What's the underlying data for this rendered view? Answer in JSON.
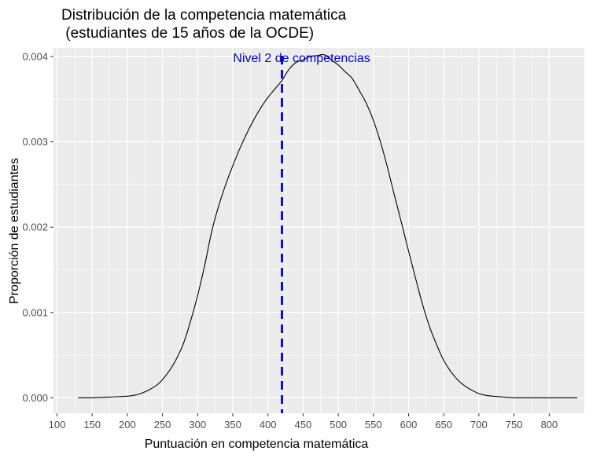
{
  "chart_data": {
    "type": "area",
    "title_line1": "Distribución de la competencia matemática",
    "title_line2": " (estudiantes de 15 años de la OCDE)",
    "xlabel": "Puntuación en competencia matemática",
    "ylabel": "Proporción de estudiantes",
    "xlim": [
      95,
      850
    ],
    "ylim": [
      -0.00018,
      0.0041
    ],
    "x_ticks": [
      100,
      150,
      200,
      250,
      300,
      350,
      400,
      450,
      500,
      550,
      600,
      650,
      700,
      750,
      800
    ],
    "x_tick_labels": [
      "100",
      "150",
      "200",
      "250",
      "300",
      "350",
      "400",
      "450",
      "500",
      "550",
      "600",
      "650",
      "700",
      "750",
      "800"
    ],
    "y_ticks": [
      0,
      0.001,
      0.002,
      0.003,
      0.004
    ],
    "y_tick_labels": [
      "0.000",
      "0.001",
      "0.002",
      "0.003",
      "0.004"
    ],
    "grid": true,
    "series": [
      {
        "x": [
          130,
          150,
          175,
          200,
          215,
          230,
          245,
          260,
          270,
          280,
          290,
          300,
          310,
          320,
          330,
          340,
          350,
          360,
          370,
          380,
          390,
          400,
          410,
          420,
          430,
          440,
          450,
          460,
          470,
          480,
          490,
          500,
          510,
          520,
          530,
          540,
          550,
          560,
          570,
          580,
          590,
          600,
          610,
          620,
          630,
          640,
          650,
          660,
          670,
          680,
          690,
          700,
          710,
          720,
          735,
          750,
          770,
          800,
          840
        ],
        "y": [
          0.0,
          0.0,
          1e-05,
          2e-05,
          4e-05,
          9e-05,
          0.00017,
          0.00032,
          0.00046,
          0.00064,
          0.0009,
          0.0012,
          0.00155,
          0.00195,
          0.00225,
          0.0025,
          0.00272,
          0.00292,
          0.0031,
          0.00326,
          0.0034,
          0.00352,
          0.00362,
          0.00372,
          0.00385,
          0.00393,
          0.00396,
          0.004,
          0.00401,
          0.00402,
          0.00396,
          0.0039,
          0.00382,
          0.00374,
          0.0036,
          0.00345,
          0.00325,
          0.003,
          0.0027,
          0.00237,
          0.00205,
          0.00172,
          0.0014,
          0.00109,
          0.00083,
          0.00062,
          0.00044,
          0.00031,
          0.00021,
          0.00014,
          9e-05,
          5e-05,
          3e-05,
          2e-05,
          1e-05,
          0.0,
          0.0,
          0.0,
          0.0
        ]
      }
    ],
    "reference_line": {
      "x": 420,
      "label": "Nivel 2 de competencias",
      "color": "#0000cc",
      "style": "dashed"
    },
    "colors": {
      "panel": "#ebebeb",
      "grid": "#ffffff",
      "curve": "#000000"
    }
  }
}
